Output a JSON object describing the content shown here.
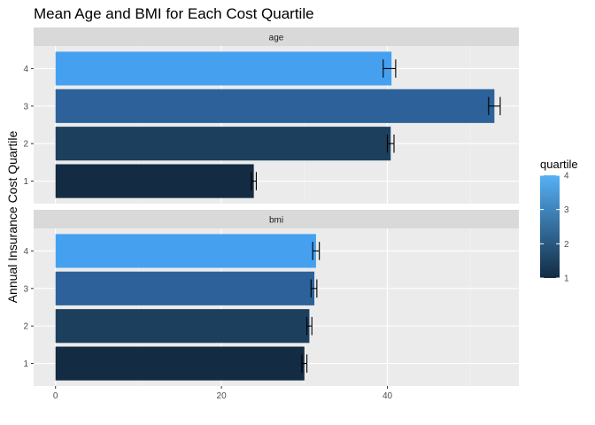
{
  "chart_data": {
    "type": "bar",
    "orientation": "horizontal",
    "title": "Mean Age and BMI for Each Cost Quartile",
    "xlabel": "",
    "ylabel": "Annual Insurance Cost Quartile",
    "xlim": [
      0,
      56
    ],
    "x_ticks": [
      0,
      20,
      40
    ],
    "categories": [
      "1",
      "2",
      "3",
      "4"
    ],
    "grid": true,
    "legend": {
      "title": "quartile",
      "placement": "right",
      "type": "colorbar",
      "ticks": [
        "1",
        "2",
        "3",
        "4"
      ],
      "low_color": "#132B43",
      "high_color": "#56B1F7"
    },
    "panels": [
      {
        "name": "age",
        "values": [
          23.9,
          40.4,
          52.9,
          40.5
        ],
        "err_low": [
          23.6,
          40.0,
          52.2,
          39.5
        ],
        "err_high": [
          24.2,
          40.8,
          53.6,
          41.0
        ]
      },
      {
        "name": "bmi",
        "values": [
          30.0,
          30.6,
          31.2,
          31.4
        ],
        "err_low": [
          29.7,
          30.3,
          30.8,
          31.0
        ],
        "err_high": [
          30.3,
          30.9,
          31.5,
          31.8
        ]
      }
    ],
    "colors": {
      "1": "#132B43",
      "2": "#1D3F5E",
      "3": "#2C6299",
      "4": "#45A1F0"
    }
  }
}
